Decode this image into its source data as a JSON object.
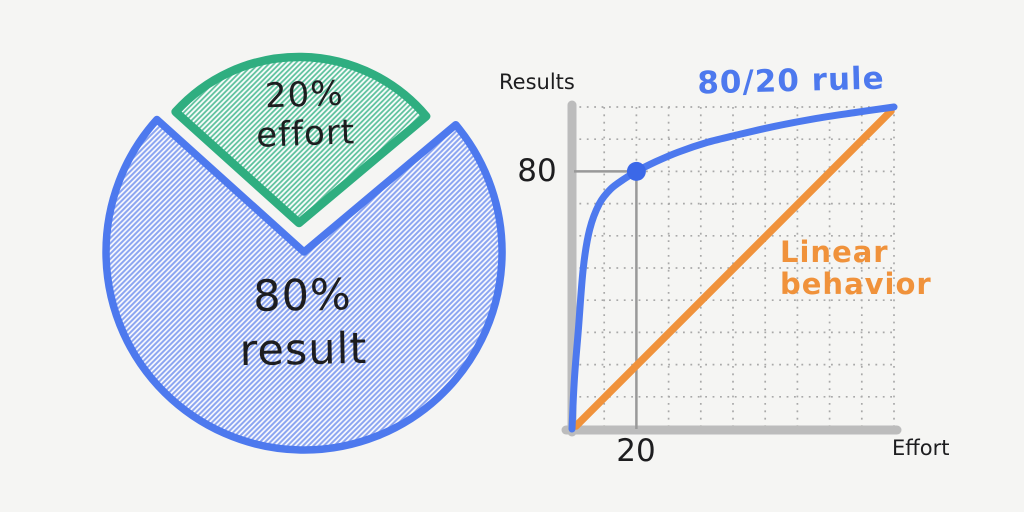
{
  "colors": {
    "background": "#f5f5f3",
    "blue": "#4d79ee",
    "blue_dark": "#3b68e8",
    "blue_hatch": "#8aa4f1",
    "green": "#2fae80",
    "green_hatch": "#5ec29e",
    "orange": "#f0923b",
    "axis_gray": "#bcbcbc",
    "grid_gray": "#a9a9a9",
    "guide_gray": "#999999",
    "ink": "#1d1d1f"
  },
  "chart_data": [
    {
      "type": "pie",
      "slices": [
        {
          "label": "20%\neffort",
          "value": 20,
          "color": "#2fae80"
        },
        {
          "label": "80%\nresult",
          "value": 80,
          "color": "#4d79ee"
        }
      ],
      "style": "hand-drawn hatched fill, 20% slice exploded toward the top"
    },
    {
      "type": "line",
      "title": "80/20 rule",
      "xlabel": "Effort",
      "ylabel": "Results",
      "xlim": [
        0,
        100
      ],
      "ylim": [
        0,
        100
      ],
      "x_ticks": [
        20
      ],
      "y_ticks": [
        80
      ],
      "grid": "dotted, 10x10 cells",
      "marker": {
        "x": 20,
        "y": 80
      },
      "series": [
        {
          "name": "80/20 rule",
          "color": "#4d79ee",
          "x": [
            0,
            0.7,
            2,
            3.5,
            5.5,
            8.5,
            12,
            16,
            20,
            26,
            33,
            42,
            52,
            63,
            75,
            88,
            100
          ],
          "y": [
            0,
            15,
            31,
            50,
            62,
            70,
            74.5,
            77.5,
            80,
            83,
            86,
            89,
            91.5,
            94,
            96.3,
            98.3,
            100
          ]
        },
        {
          "name": "Linear behavior",
          "color": "#f0923b",
          "x": [
            0,
            100
          ],
          "y": [
            0,
            100
          ]
        }
      ],
      "annotations": [
        {
          "text": "80/20 rule",
          "color": "#4d79ee",
          "position": "top-right above curve"
        },
        {
          "text": "Linear\nbehavior",
          "color": "#f0923b",
          "position": "right of linear line"
        }
      ]
    }
  ]
}
